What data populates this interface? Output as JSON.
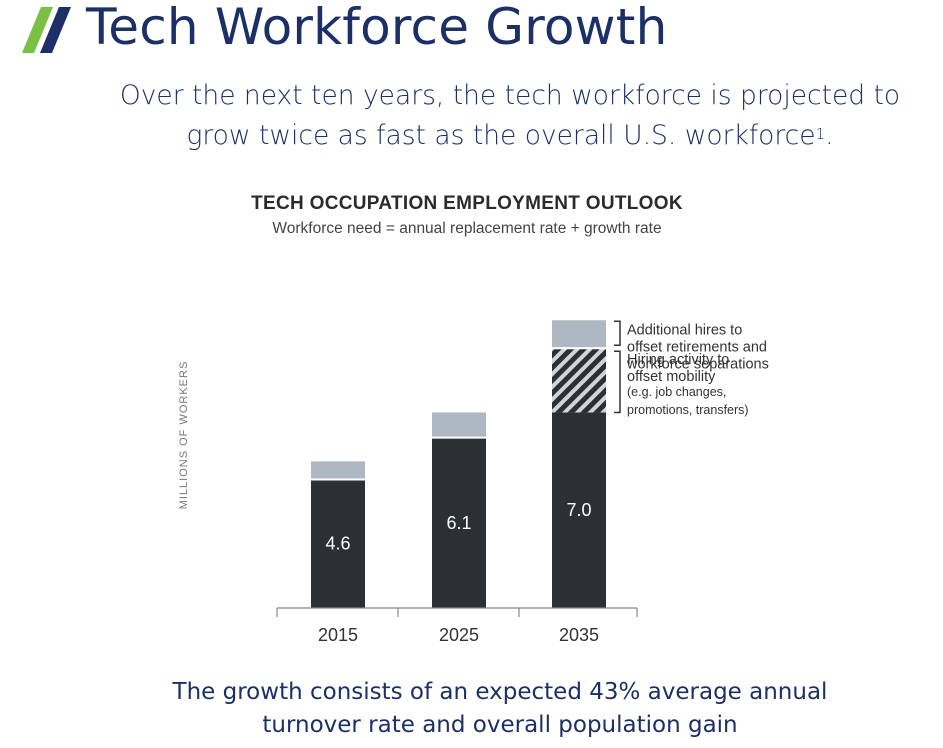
{
  "header": {
    "title": "Tech Workforce Growth",
    "subtitle_line1": "Over the next ten years, the tech workforce is projected to",
    "subtitle_line2": "grow twice as fast as the overall U.S. workforce",
    "footnote_marker": "1",
    "subtitle_end": "."
  },
  "footer": {
    "line1": "The growth consists of an expected 43% average annual",
    "line2": "turnover rate and overall population gain"
  },
  "colors": {
    "title": "#1c2f66",
    "logo_green": "#7ac143",
    "logo_navy": "#1c2f66",
    "bar_dark": "#2b3035",
    "bar_light": "#aeb8c3",
    "hatch_dark": "#2b3035",
    "hatch_light": "#cfd5db"
  },
  "chart_data": {
    "type": "bar",
    "title": "TECH OCCUPATION EMPLOYMENT OUTLOOK",
    "subtitle": "Workforce need = annual replacement rate + growth rate",
    "ylabel": "MILLIONS OF WORKERS",
    "xlabel": "",
    "categories": [
      "2015",
      "2025",
      "2035"
    ],
    "ylim": [
      0,
      12.6
    ],
    "grid": false,
    "stacked": true,
    "series": [
      {
        "key": "employment",
        "values": [
          4.6,
          6.1,
          7.0
        ],
        "labels": [
          "4.6",
          "6.1",
          "7.0"
        ]
      },
      {
        "key": "mobility",
        "values": [
          0,
          0,
          2.3
        ]
      },
      {
        "key": "replacement",
        "values": [
          0.65,
          0.9,
          1.0
        ]
      }
    ],
    "annotations": [
      {
        "target": "replacement",
        "lines": [
          "Additional hires to",
          "offset retirements and",
          "workforce separations"
        ]
      },
      {
        "target": "mobility",
        "lines": [
          "Hiring activity to",
          "offset mobility"
        ],
        "small_lines": [
          "(e.g. job changes,",
          "promotions, transfers)"
        ]
      }
    ]
  }
}
